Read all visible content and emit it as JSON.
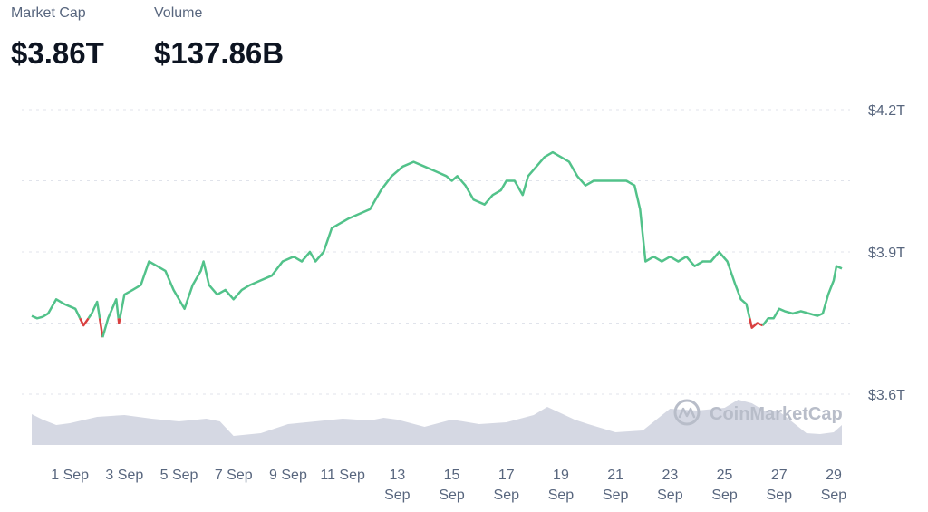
{
  "stats": {
    "market_cap_label": "Market Cap",
    "market_cap_value": "$3.86T",
    "volume_label": "Volume",
    "volume_value": "$137.86B"
  },
  "watermark": "CoinMarketCap",
  "colors": {
    "up": "#52c28a",
    "down": "#d94040",
    "volume_fill": "#d5d8e3",
    "grid": "#e0e3eb",
    "axis_text": "#58667e",
    "watermark": "#b8bdc9"
  },
  "chart_data": {
    "type": "line",
    "x_unit": "days into September (day 0 = 31 Aug)",
    "xlim": [
      -0.4,
      29.3
    ],
    "ylim": [
      3.5,
      4.26
    ],
    "baseline": 3.76,
    "grid": true,
    "y_ticks": [
      {
        "value": 4.2,
        "label": "$4.2T"
      },
      {
        "value": 3.9,
        "label": "$3.9T"
      },
      {
        "value": 3.6,
        "label": "$3.6T"
      }
    ],
    "x_ticks": [
      {
        "x": 1,
        "line1": "1 Sep",
        "line2": ""
      },
      {
        "x": 3,
        "line1": "3 Sep",
        "line2": ""
      },
      {
        "x": 5,
        "line1": "5 Sep",
        "line2": ""
      },
      {
        "x": 7,
        "line1": "7 Sep",
        "line2": ""
      },
      {
        "x": 9,
        "line1": "9 Sep",
        "line2": ""
      },
      {
        "x": 11,
        "line1": "11 Sep",
        "line2": ""
      },
      {
        "x": 13,
        "line1": "13",
        "line2": "Sep"
      },
      {
        "x": 15,
        "line1": "15",
        "line2": "Sep"
      },
      {
        "x": 17,
        "line1": "17",
        "line2": "Sep"
      },
      {
        "x": 19,
        "line1": "19",
        "line2": "Sep"
      },
      {
        "x": 21,
        "line1": "21",
        "line2": "Sep"
      },
      {
        "x": 23,
        "line1": "23",
        "line2": "Sep"
      },
      {
        "x": 25,
        "line1": "25",
        "line2": "Sep"
      },
      {
        "x": 27,
        "line1": "27",
        "line2": "Sep"
      },
      {
        "x": 29,
        "line1": "29",
        "line2": "Sep"
      }
    ],
    "series": [
      {
        "values": [
          [
            -0.4,
            3.765
          ],
          [
            -0.2,
            3.76
          ],
          [
            0.0,
            3.763
          ],
          [
            0.2,
            3.77
          ],
          [
            0.5,
            3.8
          ],
          [
            0.8,
            3.79
          ],
          [
            1.0,
            3.785
          ],
          [
            1.2,
            3.78
          ],
          [
            1.5,
            3.745
          ],
          [
            1.8,
            3.77
          ],
          [
            2.0,
            3.795
          ],
          [
            2.2,
            3.72
          ],
          [
            2.4,
            3.76
          ],
          [
            2.7,
            3.8
          ],
          [
            2.8,
            3.75
          ],
          [
            3.0,
            3.81
          ],
          [
            3.3,
            3.82
          ],
          [
            3.6,
            3.83
          ],
          [
            3.9,
            3.88
          ],
          [
            4.2,
            3.87
          ],
          [
            4.5,
            3.86
          ],
          [
            4.8,
            3.82
          ],
          [
            5.0,
            3.8
          ],
          [
            5.2,
            3.78
          ],
          [
            5.5,
            3.83
          ],
          [
            5.8,
            3.86
          ],
          [
            5.9,
            3.88
          ],
          [
            6.1,
            3.83
          ],
          [
            6.4,
            3.81
          ],
          [
            6.7,
            3.82
          ],
          [
            7.0,
            3.8
          ],
          [
            7.3,
            3.82
          ],
          [
            7.6,
            3.83
          ],
          [
            8.0,
            3.84
          ],
          [
            8.4,
            3.85
          ],
          [
            8.8,
            3.88
          ],
          [
            9.2,
            3.89
          ],
          [
            9.5,
            3.88
          ],
          [
            9.8,
            3.9
          ],
          [
            10.0,
            3.88
          ],
          [
            10.3,
            3.9
          ],
          [
            10.6,
            3.95
          ],
          [
            10.9,
            3.96
          ],
          [
            11.2,
            3.97
          ],
          [
            11.6,
            3.98
          ],
          [
            12.0,
            3.99
          ],
          [
            12.4,
            4.03
          ],
          [
            12.8,
            4.06
          ],
          [
            13.2,
            4.08
          ],
          [
            13.6,
            4.09
          ],
          [
            14.0,
            4.08
          ],
          [
            14.4,
            4.07
          ],
          [
            14.8,
            4.06
          ],
          [
            15.0,
            4.05
          ],
          [
            15.2,
            4.06
          ],
          [
            15.5,
            4.04
          ],
          [
            15.8,
            4.01
          ],
          [
            16.2,
            4.0
          ],
          [
            16.5,
            4.02
          ],
          [
            16.8,
            4.03
          ],
          [
            17.0,
            4.05
          ],
          [
            17.3,
            4.05
          ],
          [
            17.6,
            4.02
          ],
          [
            17.8,
            4.06
          ],
          [
            18.1,
            4.08
          ],
          [
            18.4,
            4.1
          ],
          [
            18.7,
            4.11
          ],
          [
            19.0,
            4.1
          ],
          [
            19.3,
            4.09
          ],
          [
            19.6,
            4.06
          ],
          [
            19.9,
            4.04
          ],
          [
            20.2,
            4.05
          ],
          [
            20.5,
            4.05
          ],
          [
            20.8,
            4.05
          ],
          [
            21.1,
            4.05
          ],
          [
            21.4,
            4.05
          ],
          [
            21.7,
            4.04
          ],
          [
            21.9,
            3.99
          ],
          [
            22.1,
            3.88
          ],
          [
            22.4,
            3.89
          ],
          [
            22.7,
            3.88
          ],
          [
            23.0,
            3.89
          ],
          [
            23.3,
            3.88
          ],
          [
            23.6,
            3.89
          ],
          [
            23.9,
            3.87
          ],
          [
            24.2,
            3.88
          ],
          [
            24.5,
            3.88
          ],
          [
            24.8,
            3.9
          ],
          [
            25.1,
            3.88
          ],
          [
            25.4,
            3.83
          ],
          [
            25.6,
            3.8
          ],
          [
            25.8,
            3.79
          ],
          [
            26.0,
            3.74
          ],
          [
            26.2,
            3.75
          ],
          [
            26.4,
            3.745
          ],
          [
            26.6,
            3.76
          ],
          [
            26.8,
            3.76
          ],
          [
            27.0,
            3.78
          ],
          [
            27.2,
            3.775
          ],
          [
            27.5,
            3.77
          ],
          [
            27.8,
            3.775
          ],
          [
            28.1,
            3.77
          ],
          [
            28.4,
            3.765
          ],
          [
            28.6,
            3.77
          ],
          [
            28.8,
            3.81
          ],
          [
            29.0,
            3.84
          ],
          [
            29.1,
            3.87
          ],
          [
            29.3,
            3.865
          ]
        ]
      }
    ],
    "volume": {
      "x": [
        -0.4,
        0.0,
        0.5,
        1.0,
        2.0,
        3.0,
        3.5,
        4.0,
        5.0,
        6.0,
        6.5,
        7.0,
        8.0,
        9.0,
        10.0,
        11.0,
        12.0,
        12.5,
        13.0,
        14.0,
        15.0,
        16.0,
        17.0,
        18.0,
        18.5,
        19.0,
        19.5,
        20.0,
        21.0,
        22.0,
        22.5,
        23.0,
        24.0,
        25.0,
        25.5,
        26.0,
        26.5,
        27.0,
        27.5,
        28.0,
        28.5,
        29.0,
        29.3
      ],
      "values": [
        0.34,
        0.28,
        0.22,
        0.24,
        0.31,
        0.33,
        0.31,
        0.29,
        0.26,
        0.29,
        0.26,
        0.1,
        0.13,
        0.23,
        0.26,
        0.29,
        0.27,
        0.3,
        0.28,
        0.2,
        0.28,
        0.23,
        0.25,
        0.33,
        0.42,
        0.35,
        0.28,
        0.23,
        0.14,
        0.16,
        0.28,
        0.4,
        0.38,
        0.41,
        0.5,
        0.46,
        0.37,
        0.37,
        0.25,
        0.13,
        0.12,
        0.14,
        0.22
      ]
    }
  }
}
